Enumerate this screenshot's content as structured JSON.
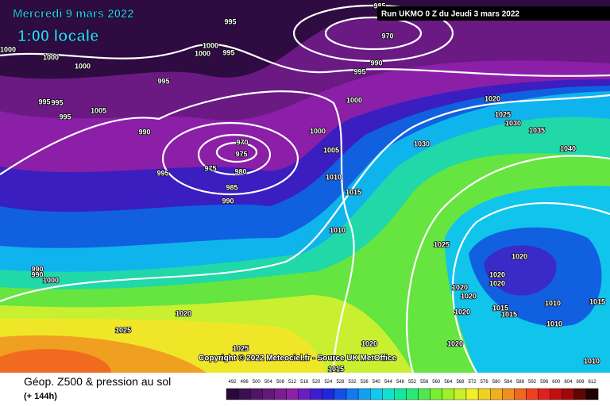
{
  "header": {
    "date": "Mercredi 9 mars 2022",
    "time": "1:00 locale",
    "run": "Run UKMO 0 Z du Jeudi 3 mars 2022"
  },
  "map": {
    "pressure_labels": [
      "995",
      "985",
      "970",
      "1000",
      "1000",
      "1000",
      "1000",
      "995",
      "1000",
      "990",
      "995",
      "995",
      "995",
      "995",
      "995",
      "1005",
      "1000",
      "990",
      "970",
      "975",
      "975",
      "980",
      "995",
      "985",
      "990",
      "1000",
      "1005",
      "1010",
      "1015",
      "1010",
      "1020",
      "1025",
      "1030",
      "1035",
      "1030",
      "1040",
      "1025",
      "1020",
      "1020",
      "1020",
      "1020",
      "1020",
      "1020",
      "1015",
      "1015",
      "1010",
      "1015",
      "1010",
      "990",
      "990",
      "1000",
      "1020",
      "1025",
      "1020",
      "1020",
      "1025",
      "1015",
      "1010"
    ]
  },
  "footer": {
    "copyright": "Copyright © 2022 Meteociel.fr - Source UK MetOffice",
    "title": "Géop. Z500 & pression au sol",
    "forecast": "(+ 144h)"
  },
  "legend": {
    "scale_labels": [
      492,
      496,
      500,
      504,
      508,
      512,
      516,
      520,
      524,
      528,
      532,
      536,
      540,
      544,
      548,
      552,
      556,
      560,
      564,
      568,
      572,
      576,
      580,
      584,
      588,
      592,
      596,
      600,
      604,
      608,
      612
    ],
    "colors": [
      "#2b0a3b",
      "#3c0f4f",
      "#4f1464",
      "#621a7a",
      "#7a1e90",
      "#8c22a8",
      "#6a1ec0",
      "#3c1ecc",
      "#1e28d8",
      "#1450e6",
      "#1478f0",
      "#14a0f0",
      "#14c8f0",
      "#14e0d0",
      "#14e8a0",
      "#28e878",
      "#50e850",
      "#78f030",
      "#a0f028",
      "#c8f028",
      "#f0f028",
      "#f0d020",
      "#f0b020",
      "#f09020",
      "#f06820",
      "#f04020",
      "#e02020",
      "#c01010",
      "#a00808",
      "#600404",
      "#200000"
    ]
  }
}
